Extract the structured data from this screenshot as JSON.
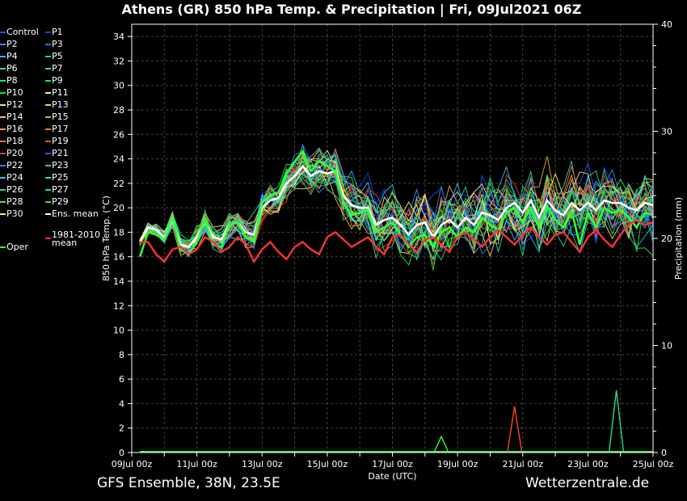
{
  "title": "Athens  (GR)  850 hPa Temp. & Precipitation | Fri, 09Jul2021 06Z",
  "footer": {
    "left": "GFS Ensemble, 38N, 23.5E",
    "right": "Wetterzentrale.de"
  },
  "legend": [
    {
      "label": "Control",
      "color": "#2255ff"
    },
    {
      "label": "P1",
      "color": "#1b3cff"
    },
    {
      "label": "P2",
      "color": "#3f8bff"
    },
    {
      "label": "P3",
      "color": "#2f6bff"
    },
    {
      "label": "P4",
      "color": "#3ab0ff"
    },
    {
      "label": "P5",
      "color": "#22c8ff"
    },
    {
      "label": "P6",
      "color": "#3bd6a8"
    },
    {
      "label": "P7",
      "color": "#2ee08a"
    },
    {
      "label": "P8",
      "color": "#33e466"
    },
    {
      "label": "P9",
      "color": "#28e050"
    },
    {
      "label": "P10",
      "color": "#11e811"
    },
    {
      "label": "P11",
      "color": "#f0f07a"
    },
    {
      "label": "P12",
      "color": "#f4e28a"
    },
    {
      "label": "P13",
      "color": "#f4cf62"
    },
    {
      "label": "P14",
      "color": "#f6c15a"
    },
    {
      "label": "P15",
      "color": "#f0a53a"
    },
    {
      "label": "P16",
      "color": "#f19a72"
    },
    {
      "label": "P17",
      "color": "#ee7a3b"
    },
    {
      "label": "P18",
      "color": "#ef7044"
    },
    {
      "label": "P19",
      "color": "#e0552c"
    },
    {
      "label": "P20",
      "color": "#d8442b"
    },
    {
      "label": "P21",
      "color": "#3155ee"
    },
    {
      "label": "P22",
      "color": "#2f86ee"
    },
    {
      "label": "P23",
      "color": "#2fbfff"
    },
    {
      "label": "P24",
      "color": "#37c6e4"
    },
    {
      "label": "P25",
      "color": "#2fdfb4"
    },
    {
      "label": "P26",
      "color": "#2fcf9a"
    },
    {
      "label": "P27",
      "color": "#22e07a"
    },
    {
      "label": "P28",
      "color": "#55e055"
    },
    {
      "label": "P29",
      "color": "#33e633"
    },
    {
      "label": "P30",
      "color": "#f4f45a"
    },
    {
      "label": "Ens. mean",
      "color": "#ffffff"
    },
    {
      "label": "Oper",
      "color": "#33ff33"
    },
    {
      "label": "1981-2010\nmean",
      "color": "#ff3333"
    }
  ],
  "chart_data": {
    "type": "line",
    "title": "Athens  (GR)  850 hPa Temp. & Precipitation | Fri, 09Jul2021 06Z",
    "xlabel": "Date (UTC)",
    "ylabel": "850 hPa Temp. (°C)",
    "y2label": "Precipitation (mm)",
    "xticks": [
      "09Jul 00z",
      "11Jul 00z",
      "13Jul 00z",
      "15Jul 00z",
      "17Jul 00z",
      "19Jul 00z",
      "21Jul 00z",
      "23Jul 00z",
      "25Jul 00z"
    ],
    "x_range_hours": [
      0,
      384
    ],
    "ylim": [
      0,
      35
    ],
    "yticks": [
      0,
      2,
      4,
      6,
      8,
      10,
      12,
      14,
      16,
      18,
      20,
      22,
      24,
      26,
      28,
      30,
      32,
      34
    ],
    "y2lim": [
      0,
      40
    ],
    "y2ticks": [
      0,
      10,
      20,
      30,
      40
    ],
    "grid": true,
    "step_hours": 6,
    "start_hour": 6,
    "series": [
      {
        "name": "Ens. mean",
        "values": [
          17.2,
          18.4,
          18.2,
          17.6,
          19.0,
          17.0,
          16.8,
          17.6,
          18.8,
          17.6,
          17.4,
          18.6,
          18.8,
          18.0,
          17.8,
          20.0,
          20.6,
          20.8,
          22.0,
          22.6,
          23.4,
          22.6,
          23.0,
          22.8,
          23.0,
          21.0,
          20.2,
          20.0,
          20.0,
          18.6,
          19.0,
          19.2,
          18.6,
          17.8,
          18.6,
          18.8,
          17.6,
          18.6,
          19.0,
          18.4,
          19.2,
          18.6,
          19.6,
          19.4,
          19.0,
          20.0,
          20.4,
          19.6,
          20.6,
          19.2,
          20.6,
          19.8,
          19.4,
          20.4,
          19.8,
          20.4,
          19.8,
          20.6,
          20.4,
          20.4,
          20.0,
          19.8,
          20.4,
          20.2
        ]
      },
      {
        "name": "Oper",
        "values": [
          16.0,
          18.0,
          17.8,
          17.4,
          19.2,
          16.6,
          16.2,
          17.2,
          19.0,
          17.0,
          16.8,
          18.6,
          18.8,
          17.6,
          17.2,
          20.4,
          21.0,
          21.2,
          22.8,
          23.8,
          24.6,
          23.0,
          23.8,
          23.4,
          23.0,
          20.4,
          19.4,
          19.6,
          19.8,
          18.0,
          18.4,
          18.8,
          17.8,
          16.8,
          17.6,
          17.8,
          16.8,
          18.0,
          18.4,
          17.6,
          18.4,
          18.0,
          19.2,
          18.6,
          18.2,
          19.6,
          20.0,
          18.8,
          20.0,
          18.4,
          20.2,
          19.0,
          18.4,
          19.8,
          17.0,
          19.6,
          18.4,
          20.0,
          19.6,
          19.8,
          19.2,
          18.4,
          19.6,
          19.4
        ]
      },
      {
        "name": "1981-2010\nmean",
        "values": [
          17.2,
          17.2,
          16.2,
          15.6,
          16.6,
          16.8,
          16.2,
          16.6,
          17.6,
          17.2,
          16.4,
          16.8,
          17.6,
          17.0,
          15.6,
          16.6,
          17.2,
          16.4,
          15.8,
          16.8,
          17.2,
          16.6,
          16.2,
          17.6,
          18.0,
          17.4,
          16.8,
          17.2,
          17.6,
          16.8,
          16.2,
          17.6,
          17.8,
          17.0,
          16.4,
          17.4,
          17.6,
          17.0,
          16.4,
          17.6,
          18.0,
          17.4,
          16.8,
          17.6,
          18.2,
          17.6,
          17.0,
          17.8,
          18.4,
          17.6,
          17.0,
          17.8,
          18.0,
          17.2,
          16.4,
          17.6,
          18.2,
          17.4,
          16.8,
          17.8,
          18.6,
          19.0,
          18.6,
          18.8
        ]
      }
    ],
    "precipitation_peaks_mm": [
      {
        "day_hour": 228,
        "value": 1.5
      },
      {
        "day_hour": 282,
        "value": 4.3
      },
      {
        "day_hour": 357,
        "value": 5.8
      }
    ]
  }
}
